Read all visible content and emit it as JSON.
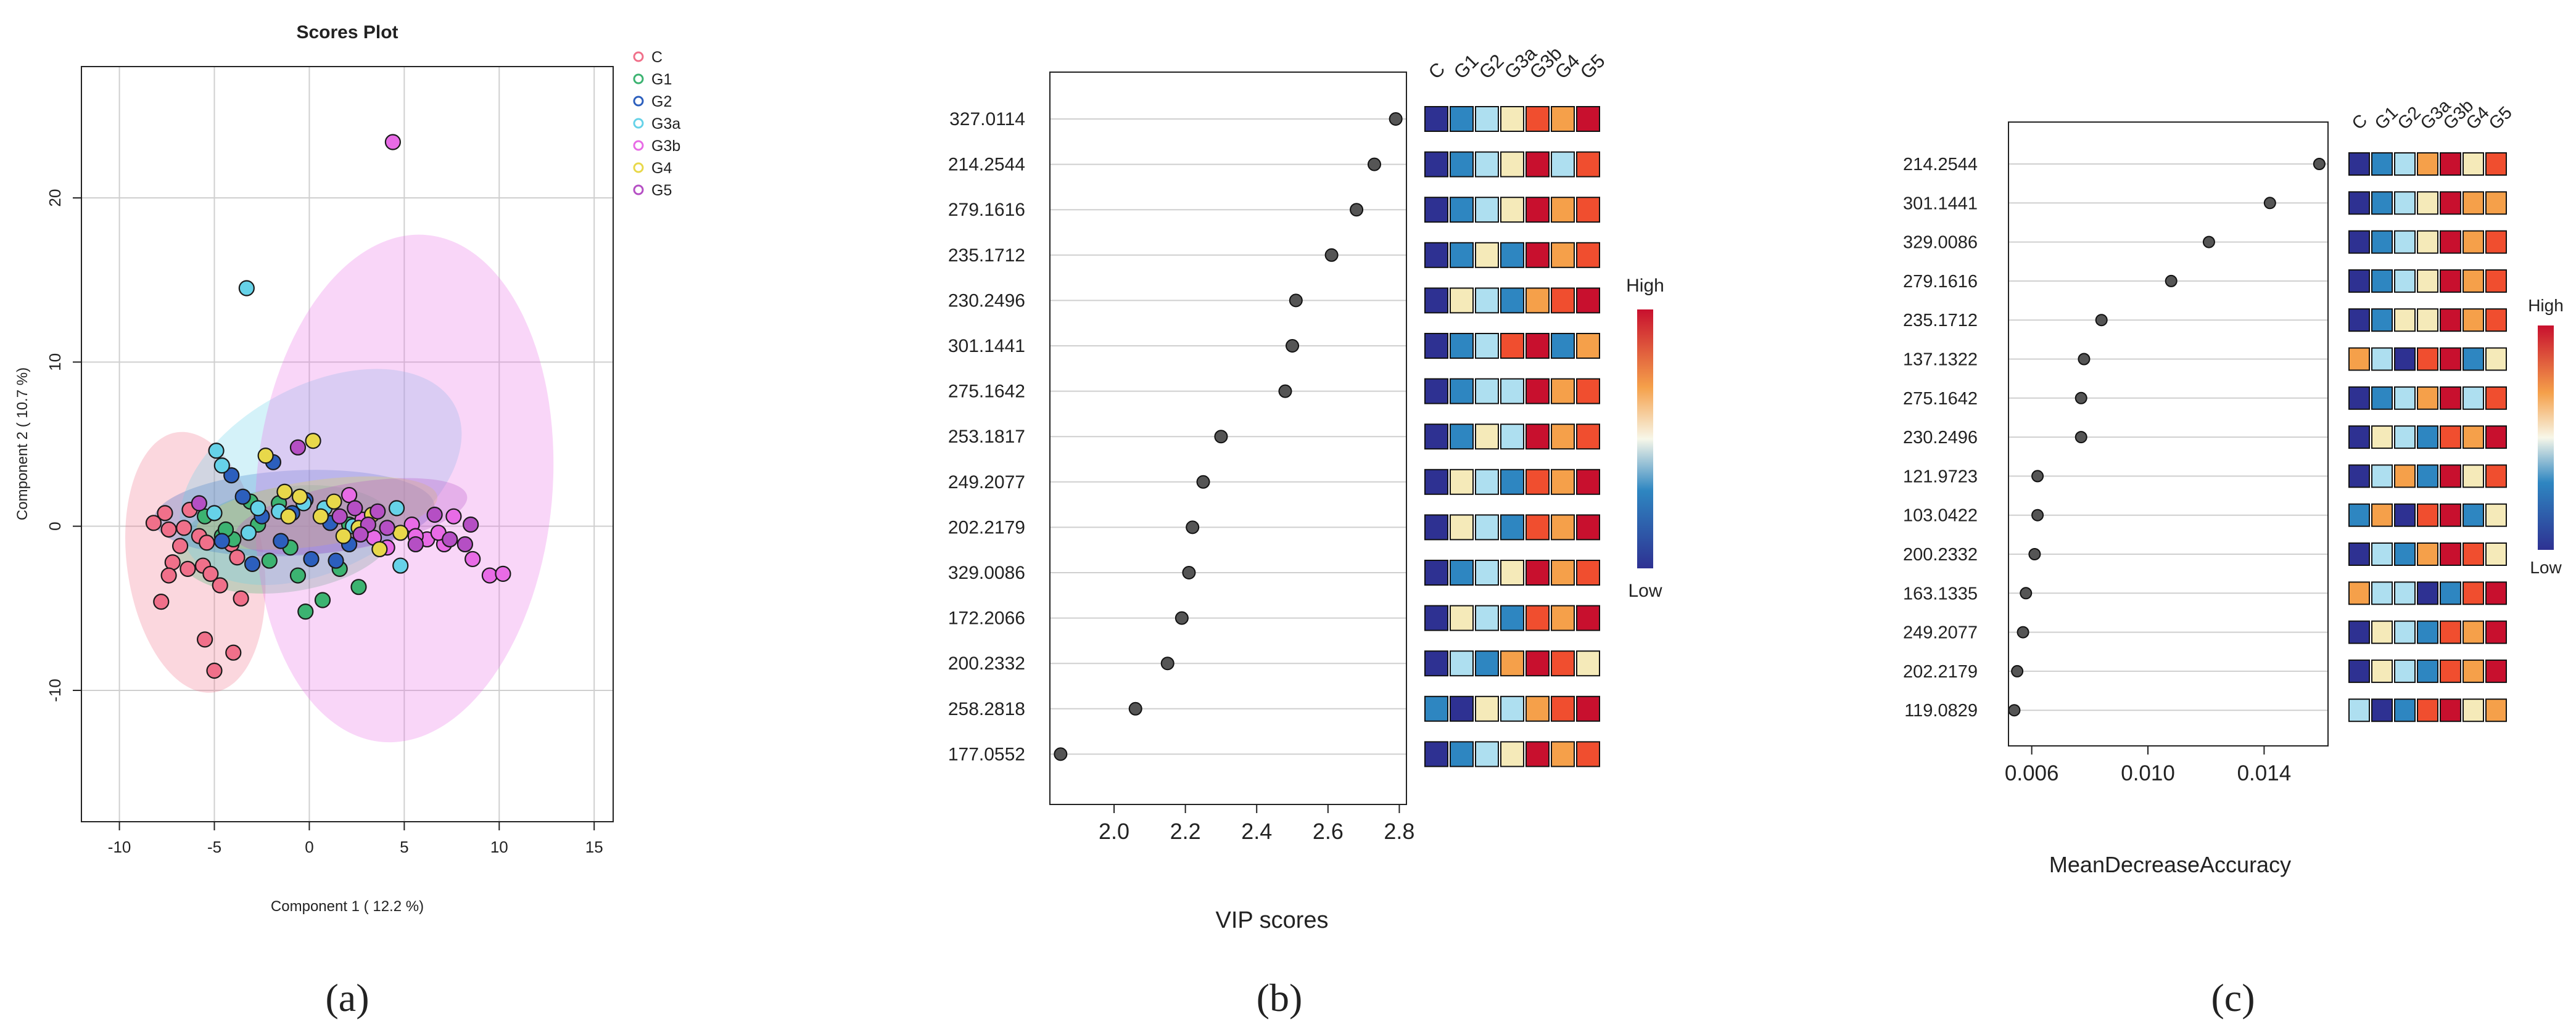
{
  "figure": {
    "panel_labels": [
      "(a)",
      "(b)",
      "(c)"
    ]
  },
  "colors": {
    "dark_blue": "#2e3192",
    "mid_blue": "#2e86c1",
    "light_blue": "#aedff0",
    "cream": "#f5eab9",
    "orange": "#f5a04a",
    "red_orange": "#f04e2f",
    "dark_red": "#c8102e",
    "dot": "#555555",
    "grid": "#cfcfcf"
  },
  "chart_data": [
    {
      "type": "scatter",
      "title": "Scores Plot",
      "xlabel": "Component 1 ( 12.2 %)",
      "ylabel": "Component 2 ( 10.7 %)",
      "xlim": [
        -12,
        16
      ],
      "ylim": [
        -18,
        28
      ],
      "xticks": [
        -10,
        -5,
        0,
        5,
        10,
        15
      ],
      "yticks": [
        -10,
        0,
        10,
        20
      ],
      "grid": true,
      "legend_position": "right",
      "series": [
        {
          "name": "C",
          "color": "#f0708a",
          "ellipse": {
            "cx": -6.0,
            "cy": -2.2,
            "rx": 3.6,
            "ry": 8.0,
            "angle": -8
          },
          "points": [
            [
              -8.2,
              0.2
            ],
            [
              -7.6,
              0.8
            ],
            [
              -7.4,
              -0.2
            ],
            [
              -6.8,
              -1.2
            ],
            [
              -7.2,
              -2.2
            ],
            [
              -6.4,
              -2.6
            ],
            [
              -5.6,
              -2.4
            ],
            [
              -5.2,
              -2.9
            ],
            [
              -5.8,
              -0.6
            ],
            [
              -6.3,
              1.0
            ],
            [
              -7.4,
              -3.0
            ],
            [
              -7.8,
              -4.6
            ],
            [
              -5.5,
              -6.9
            ],
            [
              -5.0,
              -8.8
            ],
            [
              -4.0,
              -7.7
            ],
            [
              -3.6,
              -4.4
            ],
            [
              -4.1,
              -1.1
            ],
            [
              -4.7,
              -3.6
            ],
            [
              -5.4,
              -1.0
            ],
            [
              -6.6,
              -0.1
            ],
            [
              -3.8,
              -1.9
            ]
          ]
        },
        {
          "name": "G1",
          "color": "#3cb371",
          "ellipse": {
            "cx": -1.2,
            "cy": -0.8,
            "rx": 5.8,
            "ry": 3.2,
            "angle": -8
          },
          "points": [
            [
              -5.5,
              0.6
            ],
            [
              -4.6,
              -0.6
            ],
            [
              -4.0,
              -0.8
            ],
            [
              -3.1,
              1.5
            ],
            [
              -2.1,
              -2.1
            ],
            [
              -1.0,
              -1.3
            ],
            [
              0.7,
              -4.5
            ],
            [
              -0.2,
              -5.2
            ],
            [
              -0.6,
              -3.0
            ],
            [
              1.6,
              -2.6
            ],
            [
              -4.4,
              -0.2
            ],
            [
              -2.7,
              0.1
            ],
            [
              2.1,
              0.1
            ],
            [
              2.6,
              -3.7
            ],
            [
              -1.6,
              1.4
            ]
          ]
        },
        {
          "name": "G2",
          "color": "#2c5fbd",
          "ellipse": {
            "cx": -0.8,
            "cy": 0.8,
            "rx": 7.4,
            "ry": 2.6,
            "angle": -3
          },
          "points": [
            [
              -4.6,
              -0.9
            ],
            [
              -4.1,
              3.1
            ],
            [
              -3.5,
              1.8
            ],
            [
              -3.0,
              -2.3
            ],
            [
              -1.9,
              3.9
            ],
            [
              -1.5,
              -0.9
            ],
            [
              -0.9,
              0.8
            ],
            [
              0.1,
              -2.0
            ],
            [
              1.4,
              -2.1
            ],
            [
              2.1,
              -1.1
            ],
            [
              -0.2,
              1.6
            ],
            [
              1.1,
              0.2
            ],
            [
              -2.5,
              0.6
            ]
          ]
        },
        {
          "name": "G3a",
          "color": "#66d2e8",
          "ellipse": {
            "cx": 0.6,
            "cy": 3.0,
            "rx": 8.0,
            "ry": 5.6,
            "angle": -28
          },
          "points": [
            [
              -3.3,
              14.5
            ],
            [
              -4.9,
              4.6
            ],
            [
              -4.6,
              3.7
            ],
            [
              -3.2,
              -0.4
            ],
            [
              -2.7,
              1.1
            ],
            [
              -1.6,
              0.9
            ],
            [
              -0.3,
              1.4
            ],
            [
              0.8,
              1.1
            ],
            [
              2.3,
              0.0
            ],
            [
              4.6,
              1.1
            ],
            [
              4.8,
              -2.4
            ],
            [
              -5.0,
              0.8
            ]
          ]
        },
        {
          "name": "G3b",
          "color": "#e86be6",
          "ellipse": {
            "cx": 5.0,
            "cy": 2.3,
            "rx": 7.8,
            "ry": 15.5,
            "angle": 5
          },
          "points": [
            [
              4.4,
              23.4
            ],
            [
              2.1,
              1.9
            ],
            [
              2.8,
              0.4
            ],
            [
              3.4,
              -0.7
            ],
            [
              4.1,
              -1.3
            ],
            [
              5.4,
              0.1
            ],
            [
              6.2,
              -0.8
            ],
            [
              7.1,
              -1.1
            ],
            [
              7.6,
              0.6
            ],
            [
              8.6,
              -2.0
            ],
            [
              9.5,
              -3.0
            ],
            [
              10.2,
              -2.9
            ],
            [
              6.8,
              -0.4
            ],
            [
              5.6,
              -0.6
            ]
          ]
        },
        {
          "name": "G4",
          "color": "#e8d84a",
          "ellipse": {
            "cx": 0.4,
            "cy": 0.8,
            "rx": 6.4,
            "ry": 2.0,
            "angle": -8
          },
          "points": [
            [
              -2.3,
              4.3
            ],
            [
              -1.3,
              2.1
            ],
            [
              0.2,
              5.2
            ],
            [
              -0.5,
              1.8
            ],
            [
              1.3,
              1.5
            ],
            [
              2.6,
              -0.1
            ],
            [
              3.3,
              0.7
            ],
            [
              4.8,
              -0.4
            ],
            [
              -1.1,
              0.6
            ],
            [
              1.8,
              -0.6
            ],
            [
              3.7,
              -1.4
            ],
            [
              0.6,
              0.6
            ]
          ]
        },
        {
          "name": "G5",
          "color": "#b54fc4",
          "ellipse": {
            "cx": 2.2,
            "cy": 0.6,
            "rx": 6.2,
            "ry": 2.0,
            "angle": -10
          },
          "points": [
            [
              -0.6,
              4.8
            ],
            [
              1.6,
              0.6
            ],
            [
              2.4,
              1.1
            ],
            [
              3.1,
              0.1
            ],
            [
              4.1,
              -0.1
            ],
            [
              5.6,
              -1.1
            ],
            [
              6.6,
              0.7
            ],
            [
              7.4,
              -0.8
            ],
            [
              8.5,
              0.1
            ],
            [
              8.2,
              -1.1
            ],
            [
              3.6,
              0.9
            ],
            [
              2.7,
              -0.5
            ],
            [
              -5.8,
              1.4
            ]
          ]
        }
      ]
    },
    {
      "type": "dot",
      "xlabel": "VIP scores",
      "xlim": [
        1.82,
        2.82
      ],
      "xticks": [
        2.0,
        2.2,
        2.4,
        2.6,
        2.8
      ],
      "features": [
        "327.0114",
        "214.2544",
        "279.1616",
        "235.1712",
        "230.2496",
        "301.1441",
        "275.1642",
        "253.1817",
        "249.2077",
        "202.2179",
        "329.0086",
        "172.2066",
        "200.2332",
        "258.2818",
        "177.0552"
      ],
      "values": [
        2.79,
        2.73,
        2.68,
        2.61,
        2.51,
        2.5,
        2.48,
        2.3,
        2.25,
        2.22,
        2.21,
        2.19,
        2.15,
        2.06,
        1.85
      ],
      "heatmap": {
        "columns": [
          "C",
          "G1",
          "G2",
          "G3a",
          "G3b",
          "G4",
          "G5"
        ],
        "legend_high": "High",
        "legend_low": "Low",
        "levels": [
          [
            0,
            1,
            2,
            3,
            5,
            4,
            6
          ],
          [
            0,
            1,
            2,
            3,
            6,
            2,
            5
          ],
          [
            0,
            1,
            2,
            3,
            6,
            4,
            5
          ],
          [
            0,
            1,
            3,
            1,
            6,
            4,
            5
          ],
          [
            0,
            3,
            2,
            1,
            4,
            5,
            6
          ],
          [
            0,
            1,
            2,
            5,
            6,
            1,
            4
          ],
          [
            0,
            1,
            2,
            2,
            6,
            4,
            5
          ],
          [
            0,
            1,
            3,
            2,
            6,
            4,
            5
          ],
          [
            0,
            3,
            2,
            1,
            5,
            4,
            6
          ],
          [
            0,
            3,
            2,
            1,
            5,
            4,
            6
          ],
          [
            0,
            1,
            2,
            3,
            6,
            4,
            5
          ],
          [
            0,
            3,
            2,
            1,
            5,
            4,
            6
          ],
          [
            0,
            2,
            1,
            4,
            6,
            5,
            3
          ],
          [
            1,
            0,
            3,
            2,
            4,
            5,
            6
          ],
          [
            0,
            1,
            2,
            3,
            6,
            4,
            5
          ]
        ]
      }
    },
    {
      "type": "dot",
      "xlabel": "MeanDecreaseAccuracy",
      "xlim": [
        0.0052,
        0.0162
      ],
      "xticks": [
        0.006,
        0.01,
        0.014
      ],
      "xtick_labels": [
        "0.006",
        "0.010",
        "0.014"
      ],
      "features": [
        "214.2544",
        "301.1441",
        "329.0086",
        "279.1616",
        "235.1712",
        "137.1322",
        "275.1642",
        "230.2496",
        "121.9723",
        "103.0422",
        "200.2332",
        "163.1335",
        "249.2077",
        "202.2179",
        "119.0829"
      ],
      "values": [
        0.0159,
        0.0142,
        0.0121,
        0.0108,
        0.0084,
        0.0078,
        0.0077,
        0.0077,
        0.0062,
        0.0062,
        0.0061,
        0.0058,
        0.0057,
        0.0055,
        0.0054
      ],
      "heatmap": {
        "columns": [
          "C",
          "G1",
          "G2",
          "G3a",
          "G3b",
          "G4",
          "G5"
        ],
        "legend_high": "High",
        "legend_low": "Low",
        "levels": [
          [
            0,
            1,
            2,
            4,
            6,
            3,
            5
          ],
          [
            0,
            1,
            2,
            3,
            6,
            4,
            4
          ],
          [
            0,
            1,
            2,
            3,
            6,
            4,
            5
          ],
          [
            0,
            1,
            2,
            3,
            6,
            4,
            5
          ],
          [
            0,
            1,
            3,
            3,
            6,
            4,
            5
          ],
          [
            4,
            2,
            0,
            5,
            6,
            1,
            3
          ],
          [
            0,
            1,
            2,
            4,
            6,
            2,
            5
          ],
          [
            0,
            3,
            2,
            1,
            5,
            4,
            6
          ],
          [
            0,
            2,
            4,
            1,
            6,
            3,
            5
          ],
          [
            1,
            4,
            0,
            5,
            6,
            1,
            3
          ],
          [
            0,
            2,
            1,
            4,
            6,
            5,
            3
          ],
          [
            4,
            2,
            2,
            0,
            1,
            5,
            6
          ],
          [
            0,
            3,
            2,
            1,
            5,
            4,
            6
          ],
          [
            0,
            3,
            2,
            1,
            5,
            4,
            6
          ],
          [
            2,
            0,
            1,
            5,
            6,
            3,
            4
          ]
        ]
      }
    }
  ]
}
